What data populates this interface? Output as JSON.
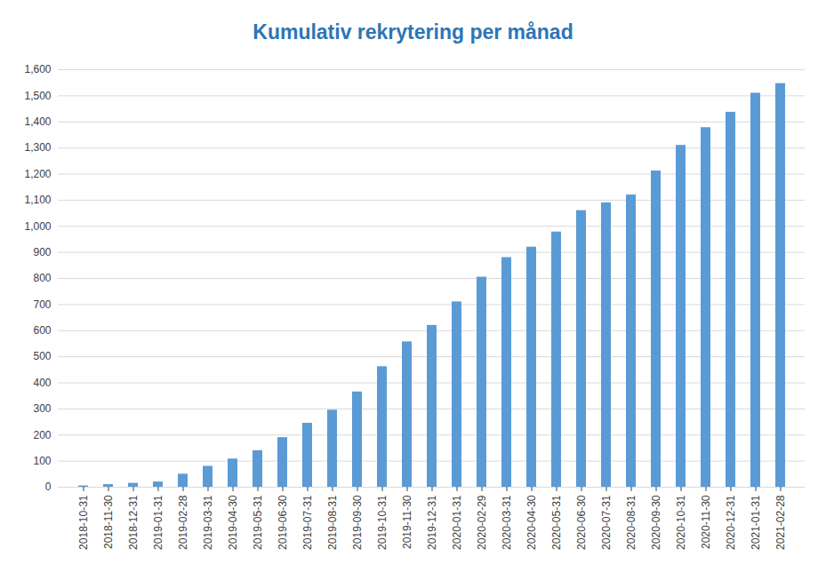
{
  "chart_data": {
    "type": "bar",
    "title": "Kumulativ rekrytering per månad",
    "categories": [
      "2018-10-31",
      "2018-11-30",
      "2018-12-31",
      "2019-01-31",
      "2019-02-28",
      "2019-03-31",
      "2019-04-30",
      "2019-05-31",
      "2019-06-30",
      "2019-07-31",
      "2019-08-31",
      "2019-09-30",
      "2019-10-31",
      "2019-11-30",
      "2019-12-31",
      "2020-01-31",
      "2020-02-29",
      "2020-03-31",
      "2020-04-30",
      "2020-05-31",
      "2020-06-30",
      "2020-07-31",
      "2020-08-31",
      "2020-09-30",
      "2020-10-31",
      "2020-11-30",
      "2020-12-31",
      "2021-01-31",
      "2021-02-28"
    ],
    "values": [
      5,
      10,
      15,
      20,
      50,
      80,
      108,
      140,
      190,
      245,
      295,
      365,
      462,
      557,
      620,
      710,
      805,
      880,
      920,
      978,
      1060,
      1090,
      1120,
      1212,
      1310,
      1378,
      1437,
      1510,
      1547
    ],
    "color": "#5b9bd5",
    "ylim": [
      0,
      1600
    ],
    "yticks": [
      0,
      100,
      200,
      300,
      400,
      500,
      600,
      700,
      800,
      900,
      1000,
      1100,
      1200,
      1300,
      1400,
      1500,
      1600
    ],
    "grid": true
  }
}
